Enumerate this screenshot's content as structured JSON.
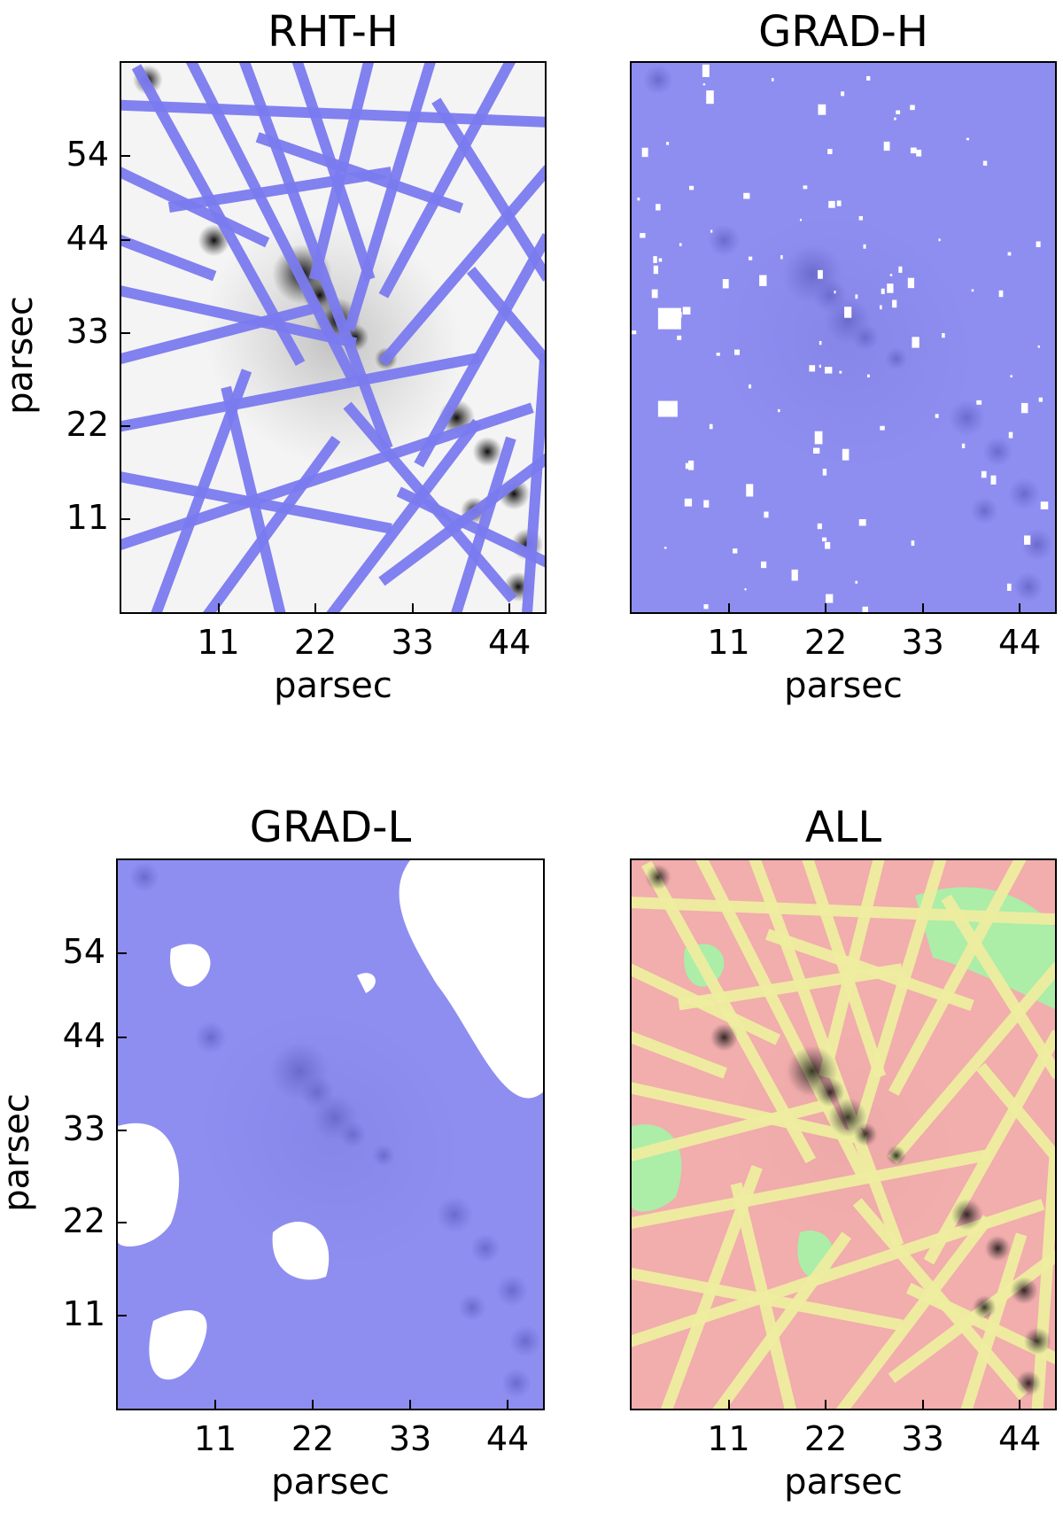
{
  "chart_data": [
    {
      "type": "heatmap",
      "title": "RHT-H",
      "xlabel": "parsec",
      "ylabel": "parsec",
      "xticks": [
        11,
        22,
        33,
        44
      ],
      "yticks": [
        11,
        22,
        33,
        44,
        54
      ],
      "xlim": [
        0,
        48
      ],
      "ylim": [
        0,
        65
      ],
      "mask_color": "#7b7bf0",
      "background": "#f4f4f4"
    },
    {
      "type": "heatmap",
      "title": "GRAD-H",
      "xlabel": "parsec",
      "ylabel": "",
      "xticks": [
        11,
        22,
        33,
        44
      ],
      "yticks": [],
      "xlim": [
        0,
        48
      ],
      "ylim": [
        0,
        65
      ],
      "mask_color": "#7b7bf0",
      "background": "#f4f4f4"
    },
    {
      "type": "heatmap",
      "title": "GRAD-L",
      "xlabel": "parsec",
      "ylabel": "parsec",
      "xticks": [
        11,
        22,
        33,
        44
      ],
      "yticks": [
        11,
        22,
        33,
        44,
        54
      ],
      "xlim": [
        0,
        48
      ],
      "ylim": [
        0,
        65
      ],
      "mask_color": "#7b7bf0",
      "background": "#f4f4f4"
    },
    {
      "type": "heatmap",
      "title": "ALL",
      "xlabel": "parsec",
      "ylabel": "",
      "xticks": [
        11,
        22,
        33,
        44
      ],
      "yticks": [],
      "xlim": [
        0,
        48
      ],
      "ylim": [
        0,
        65
      ],
      "mask_colors": [
        "#f2a5a5",
        "#eeeea0",
        "#a8f0a8"
      ],
      "background": "#f4f4f4"
    }
  ]
}
